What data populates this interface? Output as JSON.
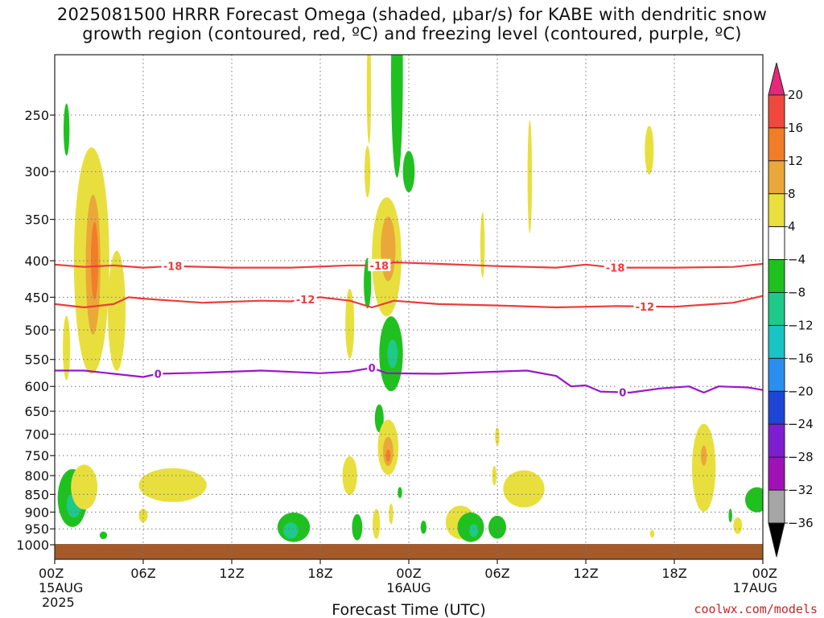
{
  "title": {
    "line1": "2025081500 HRRR Forecast Omega (shaded, μbar/s) for KABE with dendritic snow",
    "line2": "growth region (contoured, red, ºC) and freezing level (contoured, purple, ºC)"
  },
  "credit": "coolwx.com/models",
  "chart_data": {
    "type": "heatmap",
    "title": "2025081500 HRRR Forecast Omega (shaded, μbar/s) for KABE with dendritic snow growth region (contoured, red, ºC) and freezing level (contoured, purple, ºC)",
    "xlabel": "Forecast Time (UTC)",
    "ylabel": "",
    "x_range_hours": [
      0,
      48
    ],
    "x_ticks": [
      {
        "hour": 0,
        "label": "00Z",
        "sub": "15AUG",
        "sub2": "2025"
      },
      {
        "hour": 6,
        "label": "06Z",
        "sub": "",
        "sub2": ""
      },
      {
        "hour": 12,
        "label": "12Z",
        "sub": "",
        "sub2": ""
      },
      {
        "hour": 18,
        "label": "18Z",
        "sub": "",
        "sub2": ""
      },
      {
        "hour": 24,
        "label": "00Z",
        "sub": "16AUG",
        "sub2": ""
      },
      {
        "hour": 30,
        "label": "06Z",
        "sub": "",
        "sub2": ""
      },
      {
        "hour": 36,
        "label": "12Z",
        "sub": "",
        "sub2": ""
      },
      {
        "hour": 42,
        "label": "18Z",
        "sub": "",
        "sub2": ""
      },
      {
        "hour": 48,
        "label": "00Z",
        "sub": "17AUG",
        "sub2": ""
      }
    ],
    "y_ticks": [
      250,
      300,
      350,
      400,
      450,
      500,
      550,
      600,
      650,
      700,
      750,
      800,
      850,
      900,
      950,
      1000
    ],
    "y_range_hpa": [
      200,
      1025
    ],
    "grid": true,
    "colorbar": {
      "labels": [
        20,
        16,
        12,
        8,
        4,
        -4,
        -8,
        -12,
        -16,
        -20,
        -24,
        -28,
        -32,
        -36
      ],
      "colors": [
        "#e8267a",
        "#f0483c",
        "#f27d28",
        "#eba83a",
        "#e8df3e",
        "#ffffff",
        "#1fc11f",
        "#1ec98a",
        "#19c4c4",
        "#2b8fef",
        "#1d45d6",
        "#7d1fd0",
        "#a012b5",
        "#a5a5a5",
        "#000000"
      ]
    },
    "contours": [
      {
        "name": "-18",
        "color": "#ee3b3b",
        "label_hours": [
          8,
          22,
          38
        ],
        "points": [
          [
            0,
            405
          ],
          [
            2,
            408
          ],
          [
            4,
            406
          ],
          [
            6,
            409
          ],
          [
            8,
            407
          ],
          [
            12,
            409
          ],
          [
            16,
            409
          ],
          [
            20,
            406
          ],
          [
            22,
            406
          ],
          [
            23,
            402
          ],
          [
            26,
            404
          ],
          [
            30,
            407
          ],
          [
            34,
            409
          ],
          [
            36,
            405
          ],
          [
            38,
            409
          ],
          [
            42,
            409
          ],
          [
            46,
            408
          ],
          [
            48,
            404
          ]
        ]
      },
      {
        "name": "-12",
        "color": "#ee3b3b",
        "label_hours": [
          17,
          40
        ],
        "points": [
          [
            0,
            460
          ],
          [
            2,
            465
          ],
          [
            4,
            460
          ],
          [
            5,
            450
          ],
          [
            6,
            452
          ],
          [
            8,
            455
          ],
          [
            10,
            458
          ],
          [
            14,
            455
          ],
          [
            16,
            456
          ],
          [
            18,
            450
          ],
          [
            20,
            455
          ],
          [
            21.5,
            465
          ],
          [
            23,
            455
          ],
          [
            26,
            460
          ],
          [
            30,
            462
          ],
          [
            34,
            465
          ],
          [
            38,
            463
          ],
          [
            42,
            464
          ],
          [
            46,
            458
          ],
          [
            48,
            448
          ]
        ]
      },
      {
        "name": "0",
        "color": "#9b16c9",
        "label_hours": [
          7,
          21.5,
          38.5
        ],
        "points": [
          [
            0,
            570
          ],
          [
            2,
            570
          ],
          [
            4,
            576
          ],
          [
            6,
            582
          ],
          [
            7,
            576
          ],
          [
            10,
            574
          ],
          [
            14,
            570
          ],
          [
            18,
            575
          ],
          [
            20,
            572
          ],
          [
            21.5,
            565
          ],
          [
            22.5,
            575
          ],
          [
            26,
            576
          ],
          [
            30,
            572
          ],
          [
            32,
            570
          ],
          [
            34,
            580
          ],
          [
            35,
            600
          ],
          [
            36,
            598
          ],
          [
            37,
            610
          ],
          [
            39,
            612
          ],
          [
            41,
            604
          ],
          [
            43,
            600
          ],
          [
            44,
            612
          ],
          [
            45,
            600
          ],
          [
            47,
            602
          ],
          [
            48,
            607
          ]
        ]
      }
    ],
    "features": [
      {
        "type": "ellipse",
        "hour": 2.5,
        "hpa": 400,
        "rh": 1.2,
        "rp": 140,
        "value": 6
      },
      {
        "type": "ellipse",
        "hour": 2.6,
        "hpa": 405,
        "rh": 0.5,
        "rp": 90,
        "value": 10
      },
      {
        "type": "ellipse",
        "hour": 2.7,
        "hpa": 400,
        "rh": 0.25,
        "rp": 50,
        "value": 14
      },
      {
        "type": "ellipse",
        "hour": 4.2,
        "hpa": 470,
        "rh": 0.6,
        "rp": 90,
        "value": 6
      },
      {
        "type": "ellipse",
        "hour": 0.8,
        "hpa": 530,
        "rh": 0.25,
        "rp": 55,
        "value": 6
      },
      {
        "type": "ellipse",
        "hour": 0.8,
        "hpa": 262,
        "rh": 0.2,
        "rp": 22,
        "value": -6
      },
      {
        "type": "ellipse",
        "hour": 21.3,
        "hpa": 230,
        "rh": 0.15,
        "rp": 40,
        "value": 6
      },
      {
        "type": "ellipse",
        "hour": 21.2,
        "hpa": 300,
        "rh": 0.2,
        "rp": 25,
        "value": 6
      },
      {
        "type": "ellipse",
        "hour": 22.5,
        "hpa": 395,
        "rh": 1.0,
        "rp": 75,
        "value": 6
      },
      {
        "type": "ellipse",
        "hour": 22.6,
        "hpa": 385,
        "rh": 0.5,
        "rp": 40,
        "value": 10
      },
      {
        "type": "ellipse",
        "hour": 23.2,
        "hpa": 220,
        "rh": 0.4,
        "rp": 70,
        "value": -6
      },
      {
        "type": "ellipse",
        "hour": 24.0,
        "hpa": 300,
        "rh": 0.4,
        "rp": 20,
        "value": -6
      },
      {
        "type": "ellipse",
        "hour": 21.2,
        "hpa": 430,
        "rh": 0.25,
        "rp": 35,
        "value": -6
      },
      {
        "type": "ellipse",
        "hour": 20.0,
        "hpa": 490,
        "rh": 0.3,
        "rp": 55,
        "value": 6
      },
      {
        "type": "ellipse",
        "hour": 22.8,
        "hpa": 540,
        "rh": 0.8,
        "rp": 65,
        "value": -6
      },
      {
        "type": "ellipse",
        "hour": 22.9,
        "hpa": 540,
        "rh": 0.35,
        "rp": 25,
        "value": -10
      },
      {
        "type": "ellipse",
        "hour": 22.0,
        "hpa": 665,
        "rh": 0.3,
        "rp": 30,
        "value": -6
      },
      {
        "type": "ellipse",
        "hour": 22.6,
        "hpa": 730,
        "rh": 0.7,
        "rp": 65,
        "value": 6
      },
      {
        "type": "ellipse",
        "hour": 22.6,
        "hpa": 740,
        "rh": 0.35,
        "rp": 35,
        "value": 10
      },
      {
        "type": "ellipse",
        "hour": 22.6,
        "hpa": 750,
        "rh": 0.15,
        "rp": 15,
        "value": 14
      },
      {
        "type": "ellipse",
        "hour": 20.0,
        "hpa": 800,
        "rh": 0.5,
        "rp": 50,
        "value": 6
      },
      {
        "type": "ellipse",
        "hour": 23.4,
        "hpa": 845,
        "rh": 0.15,
        "rp": 15,
        "value": -6
      },
      {
        "type": "ellipse",
        "hour": 1.2,
        "hpa": 860,
        "rh": 1.0,
        "rp": 80,
        "value": -6
      },
      {
        "type": "ellipse",
        "hour": 1.3,
        "hpa": 880,
        "rh": 0.5,
        "rp": 35,
        "value": -10
      },
      {
        "type": "ellipse",
        "hour": 2.0,
        "hpa": 830,
        "rh": 0.9,
        "rp": 60,
        "value": 6
      },
      {
        "type": "ellipse",
        "hour": 3.3,
        "hpa": 970,
        "rh": 0.25,
        "rp": 12,
        "value": -6
      },
      {
        "type": "ellipse",
        "hour": 8.0,
        "hpa": 825,
        "rh": 2.3,
        "rp": 45,
        "value": 6
      },
      {
        "type": "ellipse",
        "hour": 6.0,
        "hpa": 910,
        "rh": 0.3,
        "rp": 20,
        "value": 6
      },
      {
        "type": "ellipse",
        "hour": 16.2,
        "hpa": 945,
        "rh": 1.1,
        "rp": 45,
        "value": -6
      },
      {
        "type": "ellipse",
        "hour": 16.0,
        "hpa": 955,
        "rh": 0.5,
        "rp": 25,
        "value": -10
      },
      {
        "type": "ellipse",
        "hour": 20.5,
        "hpa": 945,
        "rh": 0.35,
        "rp": 40,
        "value": -6
      },
      {
        "type": "ellipse",
        "hour": 21.8,
        "hpa": 935,
        "rh": 0.25,
        "rp": 45,
        "value": 6
      },
      {
        "type": "ellipse",
        "hour": 22.8,
        "hpa": 905,
        "rh": 0.15,
        "rp": 30,
        "value": 6
      },
      {
        "type": "ellipse",
        "hour": 25.0,
        "hpa": 945,
        "rh": 0.2,
        "rp": 20,
        "value": -6
      },
      {
        "type": "ellipse",
        "hour": 27.5,
        "hpa": 930,
        "rh": 1.0,
        "rp": 50,
        "value": 6
      },
      {
        "type": "ellipse",
        "hour": 28.2,
        "hpa": 945,
        "rh": 0.9,
        "rp": 45,
        "value": -6
      },
      {
        "type": "ellipse",
        "hour": 28.4,
        "hpa": 955,
        "rh": 0.3,
        "rp": 20,
        "value": -10
      },
      {
        "type": "ellipse",
        "hour": 30.0,
        "hpa": 945,
        "rh": 0.6,
        "rp": 35,
        "value": -6
      },
      {
        "type": "ellipse",
        "hour": 29.8,
        "hpa": 800,
        "rh": 0.15,
        "rp": 25,
        "value": 6
      },
      {
        "type": "ellipse",
        "hour": 30.0,
        "hpa": 705,
        "rh": 0.15,
        "rp": 20,
        "value": 6
      },
      {
        "type": "ellipse",
        "hour": 31.8,
        "hpa": 835,
        "rh": 1.4,
        "rp": 50,
        "value": 6
      },
      {
        "type": "ellipse",
        "hour": 29.0,
        "hpa": 380,
        "rh": 0.15,
        "rp": 40,
        "value": 6
      },
      {
        "type": "ellipse",
        "hour": 32.2,
        "hpa": 305,
        "rh": 0.15,
        "rp": 55,
        "value": 6
      },
      {
        "type": "ellipse",
        "hour": 40.3,
        "hpa": 280,
        "rh": 0.3,
        "rp": 22,
        "value": 6
      },
      {
        "type": "ellipse",
        "hour": 44.0,
        "hpa": 780,
        "rh": 0.8,
        "rp": 110,
        "value": 6
      },
      {
        "type": "ellipse",
        "hour": 44.0,
        "hpa": 750,
        "rh": 0.2,
        "rp": 25,
        "value": 10
      },
      {
        "type": "ellipse",
        "hour": 45.8,
        "hpa": 910,
        "rh": 0.12,
        "rp": 20,
        "value": -6
      },
      {
        "type": "ellipse",
        "hour": 47.6,
        "hpa": 865,
        "rh": 0.8,
        "rp": 35,
        "value": -6
      },
      {
        "type": "ellipse",
        "hour": 46.3,
        "hpa": 940,
        "rh": 0.3,
        "rp": 25,
        "value": 6
      },
      {
        "type": "ellipse",
        "hour": 40.5,
        "hpa": 965,
        "rh": 0.15,
        "rp": 12,
        "value": 6
      }
    ]
  }
}
